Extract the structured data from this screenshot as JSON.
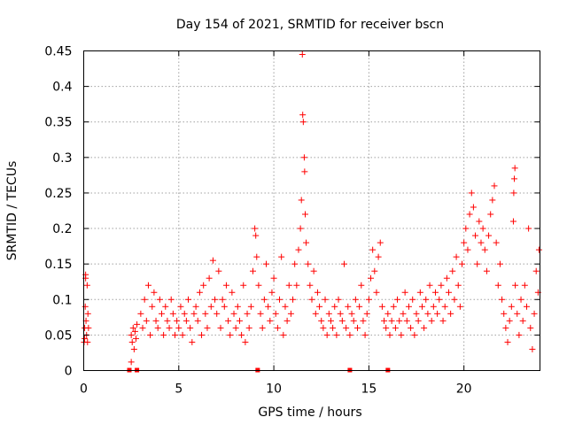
{
  "chart_data": {
    "type": "scatter",
    "title": "Day 154 of 2021, SRMTID for receiver bscn",
    "xlabel": "GPS time / hours",
    "ylabel": "SRMTID / TECUs",
    "xlim": [
      0,
      24
    ],
    "ylim": [
      0,
      0.45
    ],
    "xticks": [
      0,
      5,
      10,
      15,
      20
    ],
    "xtick_labels": [
      "0",
      "5",
      "10",
      "15",
      "20"
    ],
    "yticks": [
      0,
      0.05,
      0.1,
      0.15,
      0.2,
      0.25,
      0.3,
      0.35,
      0.4,
      0.45
    ],
    "ytick_labels": [
      "0",
      "0.05",
      "0.1",
      "0.15",
      "0.2",
      "0.25",
      "0.3",
      "0.35",
      "0.4",
      "0.45"
    ],
    "grid": true,
    "marker": "+",
    "color": "#ff0000",
    "series": [
      {
        "name": "SRMTID",
        "points": [
          [
            0.02,
            0.04
          ],
          [
            0.05,
            0.06
          ],
          [
            0.08,
            0.09
          ],
          [
            0.1,
            0.13
          ],
          [
            0.12,
            0.07
          ],
          [
            0.15,
            0.05
          ],
          [
            0.18,
            0.12
          ],
          [
            0.2,
            0.04
          ],
          [
            0.22,
            0.08
          ],
          [
            0.25,
            0.06
          ],
          [
            0.1,
            0.135
          ],
          [
            0.05,
            0.045
          ],
          [
            2.5,
            0.05
          ],
          [
            2.55,
            0.04
          ],
          [
            2.6,
            0.06
          ],
          [
            2.65,
            0.03
          ],
          [
            2.7,
            0.055
          ],
          [
            2.5,
            0.012
          ],
          [
            2.75,
            0.045
          ],
          [
            2.8,
            0.065
          ],
          [
            3.0,
            0.08
          ],
          [
            3.1,
            0.06
          ],
          [
            3.2,
            0.1
          ],
          [
            3.3,
            0.07
          ],
          [
            3.4,
            0.12
          ],
          [
            3.5,
            0.05
          ],
          [
            3.6,
            0.09
          ],
          [
            3.7,
            0.11
          ],
          [
            3.8,
            0.07
          ],
          [
            3.9,
            0.06
          ],
          [
            4.0,
            0.1
          ],
          [
            4.1,
            0.08
          ],
          [
            4.2,
            0.05
          ],
          [
            4.3,
            0.09
          ],
          [
            4.4,
            0.07
          ],
          [
            4.5,
            0.06
          ],
          [
            4.6,
            0.1
          ],
          [
            4.7,
            0.08
          ],
          [
            4.8,
            0.05
          ],
          [
            4.9,
            0.07
          ],
          [
            5.0,
            0.06
          ],
          [
            5.1,
            0.09
          ],
          [
            5.2,
            0.05
          ],
          [
            5.3,
            0.08
          ],
          [
            5.4,
            0.07
          ],
          [
            5.5,
            0.1
          ],
          [
            5.6,
            0.06
          ],
          [
            5.7,
            0.04
          ],
          [
            5.8,
            0.08
          ],
          [
            5.9,
            0.09
          ],
          [
            6.0,
            0.07
          ],
          [
            6.1,
            0.11
          ],
          [
            6.2,
            0.05
          ],
          [
            6.3,
            0.12
          ],
          [
            6.4,
            0.08
          ],
          [
            6.5,
            0.06
          ],
          [
            6.6,
            0.13
          ],
          [
            6.7,
            0.09
          ],
          [
            6.8,
            0.155
          ],
          [
            6.9,
            0.1
          ],
          [
            7.0,
            0.08
          ],
          [
            7.1,
            0.14
          ],
          [
            7.2,
            0.06
          ],
          [
            7.3,
            0.1
          ],
          [
            7.4,
            0.09
          ],
          [
            7.5,
            0.12
          ],
          [
            7.6,
            0.07
          ],
          [
            7.7,
            0.05
          ],
          [
            7.8,
            0.11
          ],
          [
            7.9,
            0.08
          ],
          [
            8.0,
            0.06
          ],
          [
            8.1,
            0.09
          ],
          [
            8.2,
            0.07
          ],
          [
            8.3,
            0.05
          ],
          [
            8.4,
            0.12
          ],
          [
            8.5,
            0.04
          ],
          [
            8.6,
            0.08
          ],
          [
            8.7,
            0.06
          ],
          [
            8.8,
            0.09
          ],
          [
            8.9,
            0.14
          ],
          [
            9.0,
            0.2
          ],
          [
            9.05,
            0.19
          ],
          [
            9.1,
            0.16
          ],
          [
            9.2,
            0.12
          ],
          [
            9.3,
            0.08
          ],
          [
            9.4,
            0.06
          ],
          [
            9.5,
            0.1
          ],
          [
            9.6,
            0.15
          ],
          [
            9.7,
            0.09
          ],
          [
            9.8,
            0.07
          ],
          [
            9.9,
            0.11
          ],
          [
            10.0,
            0.13
          ],
          [
            10.1,
            0.08
          ],
          [
            10.2,
            0.06
          ],
          [
            10.3,
            0.1
          ],
          [
            10.4,
            0.16
          ],
          [
            10.5,
            0.05
          ],
          [
            10.6,
            0.09
          ],
          [
            10.7,
            0.07
          ],
          [
            10.8,
            0.12
          ],
          [
            10.9,
            0.08
          ],
          [
            11.0,
            0.1
          ],
          [
            11.1,
            0.15
          ],
          [
            11.2,
            0.12
          ],
          [
            11.3,
            0.17
          ],
          [
            11.4,
            0.2
          ],
          [
            11.45,
            0.24
          ],
          [
            11.5,
            0.445
          ],
          [
            11.52,
            0.36
          ],
          [
            11.55,
            0.35
          ],
          [
            11.6,
            0.3
          ],
          [
            11.62,
            0.28
          ],
          [
            11.65,
            0.22
          ],
          [
            11.7,
            0.18
          ],
          [
            11.8,
            0.15
          ],
          [
            11.9,
            0.12
          ],
          [
            12.0,
            0.1
          ],
          [
            12.1,
            0.14
          ],
          [
            12.2,
            0.08
          ],
          [
            12.3,
            0.11
          ],
          [
            12.4,
            0.09
          ],
          [
            12.5,
            0.07
          ],
          [
            12.6,
            0.06
          ],
          [
            12.7,
            0.1
          ],
          [
            12.8,
            0.05
          ],
          [
            12.9,
            0.08
          ],
          [
            13.0,
            0.07
          ],
          [
            13.1,
            0.06
          ],
          [
            13.2,
            0.09
          ],
          [
            13.3,
            0.05
          ],
          [
            13.4,
            0.1
          ],
          [
            13.5,
            0.08
          ],
          [
            13.6,
            0.07
          ],
          [
            13.7,
            0.15
          ],
          [
            13.8,
            0.06
          ],
          [
            13.9,
            0.09
          ],
          [
            14.0,
            0.05
          ],
          [
            14.1,
            0.08
          ],
          [
            14.2,
            0.07
          ],
          [
            14.3,
            0.1
          ],
          [
            14.4,
            0.06
          ],
          [
            14.5,
            0.09
          ],
          [
            14.6,
            0.12
          ],
          [
            14.7,
            0.07
          ],
          [
            14.8,
            0.05
          ],
          [
            14.9,
            0.08
          ],
          [
            15.0,
            0.1
          ],
          [
            15.1,
            0.13
          ],
          [
            15.2,
            0.17
          ],
          [
            15.3,
            0.14
          ],
          [
            15.4,
            0.11
          ],
          [
            15.5,
            0.16
          ],
          [
            15.6,
            0.18
          ],
          [
            15.7,
            0.09
          ],
          [
            15.8,
            0.07
          ],
          [
            15.9,
            0.06
          ],
          [
            16.0,
            0.08
          ],
          [
            16.1,
            0.05
          ],
          [
            16.2,
            0.07
          ],
          [
            16.3,
            0.09
          ],
          [
            16.4,
            0.06
          ],
          [
            16.5,
            0.1
          ],
          [
            16.6,
            0.07
          ],
          [
            16.7,
            0.05
          ],
          [
            16.8,
            0.08
          ],
          [
            16.9,
            0.11
          ],
          [
            17.0,
            0.07
          ],
          [
            17.1,
            0.09
          ],
          [
            17.2,
            0.06
          ],
          [
            17.3,
            0.1
          ],
          [
            17.4,
            0.05
          ],
          [
            17.5,
            0.08
          ],
          [
            17.6,
            0.07
          ],
          [
            17.7,
            0.11
          ],
          [
            17.8,
            0.09
          ],
          [
            17.9,
            0.06
          ],
          [
            18.0,
            0.1
          ],
          [
            18.1,
            0.08
          ],
          [
            18.2,
            0.12
          ],
          [
            18.3,
            0.07
          ],
          [
            18.4,
            0.09
          ],
          [
            18.5,
            0.11
          ],
          [
            18.6,
            0.08
          ],
          [
            18.7,
            0.1
          ],
          [
            18.8,
            0.12
          ],
          [
            18.9,
            0.07
          ],
          [
            19.0,
            0.09
          ],
          [
            19.1,
            0.13
          ],
          [
            19.2,
            0.11
          ],
          [
            19.3,
            0.08
          ],
          [
            19.4,
            0.14
          ],
          [
            19.5,
            0.1
          ],
          [
            19.6,
            0.16
          ],
          [
            19.7,
            0.12
          ],
          [
            19.8,
            0.09
          ],
          [
            19.9,
            0.15
          ],
          [
            20.0,
            0.18
          ],
          [
            20.1,
            0.2
          ],
          [
            20.2,
            0.17
          ],
          [
            20.3,
            0.22
          ],
          [
            20.4,
            0.25
          ],
          [
            20.5,
            0.23
          ],
          [
            20.6,
            0.19
          ],
          [
            20.7,
            0.15
          ],
          [
            20.8,
            0.21
          ],
          [
            20.9,
            0.18
          ],
          [
            21.0,
            0.2
          ],
          [
            21.1,
            0.17
          ],
          [
            21.2,
            0.14
          ],
          [
            21.3,
            0.19
          ],
          [
            21.4,
            0.22
          ],
          [
            21.5,
            0.24
          ],
          [
            21.6,
            0.26
          ],
          [
            21.7,
            0.18
          ],
          [
            21.8,
            0.12
          ],
          [
            21.9,
            0.15
          ],
          [
            22.0,
            0.1
          ],
          [
            22.1,
            0.08
          ],
          [
            22.2,
            0.06
          ],
          [
            22.3,
            0.04
          ],
          [
            22.4,
            0.07
          ],
          [
            22.5,
            0.09
          ],
          [
            22.6,
            0.21
          ],
          [
            22.62,
            0.25
          ],
          [
            22.65,
            0.27
          ],
          [
            22.68,
            0.285
          ],
          [
            22.7,
            0.12
          ],
          [
            22.8,
            0.08
          ],
          [
            22.9,
            0.05
          ],
          [
            23.0,
            0.1
          ],
          [
            23.1,
            0.07
          ],
          [
            23.2,
            0.12
          ],
          [
            23.3,
            0.09
          ],
          [
            23.4,
            0.2
          ],
          [
            23.5,
            0.06
          ],
          [
            23.6,
            0.03
          ],
          [
            23.7,
            0.08
          ],
          [
            23.8,
            0.14
          ],
          [
            23.9,
            0.11
          ],
          [
            23.95,
            0.17
          ]
        ]
      }
    ],
    "gap_markers_x": [
      2.4,
      2.8,
      9.15,
      14.0,
      16.0
    ]
  }
}
